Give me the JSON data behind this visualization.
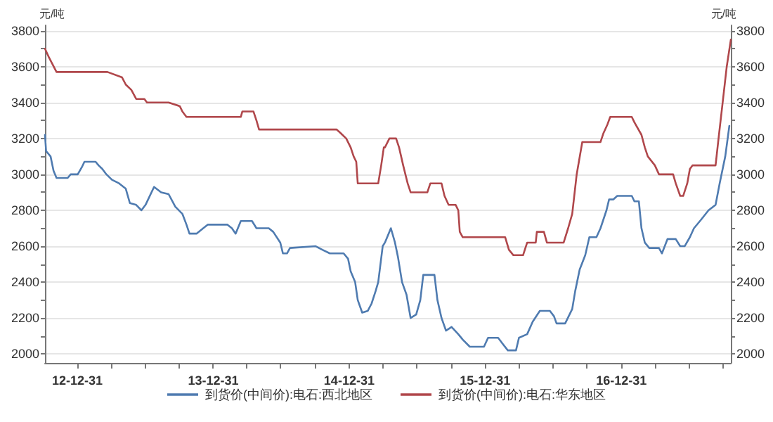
{
  "chart_data": {
    "type": "line",
    "ylabel": "元/吨",
    "y2label": "元/吨",
    "xlim": [
      "2012-10-05",
      "2017-10-21"
    ],
    "xticks": [
      {
        "value": "2012-12-31",
        "label": "12-12-31"
      },
      {
        "value": "2013-03-31",
        "label": null
      },
      {
        "value": "2013-06-30",
        "label": null
      },
      {
        "value": "2013-09-30",
        "label": null
      },
      {
        "value": "2013-12-31",
        "label": "13-12-31"
      },
      {
        "value": "2014-03-31",
        "label": null
      },
      {
        "value": "2014-06-30",
        "label": null
      },
      {
        "value": "2014-09-30",
        "label": null
      },
      {
        "value": "2014-12-31",
        "label": "14-12-31"
      },
      {
        "value": "2015-03-31",
        "label": null
      },
      {
        "value": "2015-06-30",
        "label": null
      },
      {
        "value": "2015-09-30",
        "label": null
      },
      {
        "value": "2015-12-31",
        "label": "15-12-31"
      },
      {
        "value": "2016-03-31",
        "label": null
      },
      {
        "value": "2016-06-30",
        "label": null
      },
      {
        "value": "2016-09-30",
        "label": null
      },
      {
        "value": "2016-12-31",
        "label": "16-12-31"
      },
      {
        "value": "2017-03-31",
        "label": null
      },
      {
        "value": "2017-06-30",
        "label": null
      },
      {
        "value": "2017-09-30",
        "label": null
      }
    ],
    "ylim": [
      1950,
      3830
    ],
    "yticks": [
      2000,
      {
        "value": 2100,
        "label": null
      },
      2200,
      {
        "value": 2300,
        "label": null
      },
      2400,
      {
        "value": 2500,
        "label": null
      },
      2600,
      {
        "value": 2700,
        "label": null
      },
      2800,
      {
        "value": 2900,
        "label": null
      },
      3000,
      {
        "value": 3100,
        "label": null
      },
      3200,
      {
        "value": 3300,
        "label": null
      },
      3400,
      {
        "value": 3500,
        "label": null
      },
      3600,
      {
        "value": 3700,
        "label": null
      },
      3800
    ],
    "y2lim": [
      1950,
      3830
    ],
    "y2ticks": [
      2000,
      {
        "value": 2100,
        "label": null
      },
      2200,
      {
        "value": 2300,
        "label": null
      },
      2400,
      {
        "value": 2500,
        "label": null
      },
      2600,
      {
        "value": 2700,
        "label": null
      },
      2800,
      {
        "value": 2900,
        "label": null
      },
      3000,
      {
        "value": 3100,
        "label": null
      },
      3200,
      {
        "value": 3300,
        "label": null
      },
      3400,
      {
        "value": 3500,
        "label": null
      },
      3600,
      {
        "value": 3700,
        "label": null
      },
      3800
    ],
    "grid": "y",
    "legend": "bottom",
    "marker": "none",
    "line_style": "solid",
    "series": [
      {
        "name": "到货价(中间价):电石:西北地区",
        "color": "#4f7bb0",
        "x": [
          "2012-10-05",
          "2012-10-08",
          "2012-10-20",
          "2012-10-28",
          "2012-11-05",
          "2012-12-05",
          "2012-12-13",
          "2013-01-01",
          "2013-01-12",
          "2013-01-19",
          "2013-02-18",
          "2013-02-26",
          "2013-03-08",
          "2013-03-19",
          "2013-04-03",
          "2013-04-22",
          "2013-05-10",
          "2013-05-21",
          "2013-06-07",
          "2013-06-21",
          "2013-07-02",
          "2013-07-25",
          "2013-08-13",
          "2013-09-02",
          "2013-09-20",
          "2013-10-09",
          "2013-10-20",
          "2013-10-28",
          "2013-11-16",
          "2013-12-04",
          "2013-12-16",
          "2014-02-07",
          "2014-02-19",
          "2014-03-01",
          "2014-03-15",
          "2014-04-14",
          "2014-04-26",
          "2014-05-29",
          "2014-06-10",
          "2014-06-29",
          "2014-07-06",
          "2014-07-17",
          "2014-07-25",
          "2014-10-02",
          "2014-10-20",
          "2014-11-09",
          "2014-12-16",
          "2014-12-28",
          "2015-01-04",
          "2015-01-16",
          "2015-01-23",
          "2015-02-04",
          "2015-02-19",
          "2015-03-01",
          "2015-03-12",
          "2015-03-19",
          "2015-03-31",
          "2015-04-06",
          "2015-04-22",
          "2015-05-03",
          "2015-05-11",
          "2015-05-22",
          "2015-06-03",
          "2015-06-14",
          "2015-06-29",
          "2015-07-10",
          "2015-07-18",
          "2015-08-17",
          "2015-08-25",
          "2015-09-05",
          "2015-09-17",
          "2015-10-02",
          "2015-10-20",
          "2015-11-01",
          "2015-11-20",
          "2015-12-28",
          "2016-01-08",
          "2016-02-04",
          "2016-02-15",
          "2016-03-01",
          "2016-03-23",
          "2016-03-31",
          "2016-04-22",
          "2016-05-07",
          "2016-05-26",
          "2016-06-22",
          "2016-07-03",
          "2016-07-10",
          "2016-08-02",
          "2016-08-21",
          "2016-08-29",
          "2016-09-10",
          "2016-09-25",
          "2016-10-06",
          "2016-10-25",
          "2016-11-05",
          "2016-11-21",
          "2016-11-28",
          "2016-12-09",
          "2016-12-20",
          "2017-01-28",
          "2017-02-04",
          "2017-02-16",
          "2017-02-23",
          "2017-03-04",
          "2017-03-16",
          "2017-04-11",
          "2017-04-19",
          "2017-05-04",
          "2017-05-26",
          "2017-06-07",
          "2017-06-19",
          "2017-07-03",
          "2017-07-14",
          "2017-08-03",
          "2017-08-22",
          "2017-09-10",
          "2017-09-21",
          "2017-10-06",
          "2017-10-17"
        ],
        "values": [
          3220,
          3130,
          3100,
          3020,
          2980,
          2980,
          3000,
          3000,
          3040,
          3070,
          3070,
          3050,
          3030,
          3000,
          2970,
          2950,
          2920,
          2840,
          2830,
          2800,
          2830,
          2930,
          2900,
          2890,
          2820,
          2780,
          2720,
          2670,
          2670,
          2700,
          2720,
          2720,
          2700,
          2670,
          2740,
          2740,
          2700,
          2700,
          2680,
          2620,
          2560,
          2560,
          2590,
          2600,
          2580,
          2560,
          2560,
          2530,
          2460,
          2400,
          2300,
          2230,
          2240,
          2280,
          2350,
          2400,
          2600,
          2620,
          2700,
          2620,
          2540,
          2400,
          2330,
          2200,
          2220,
          2300,
          2440,
          2440,
          2300,
          2200,
          2130,
          2150,
          2110,
          2080,
          2040,
          2040,
          2090,
          2090,
          2060,
          2020,
          2020,
          2090,
          2110,
          2180,
          2240,
          2240,
          2210,
          2170,
          2170,
          2250,
          2350,
          2470,
          2550,
          2650,
          2650,
          2700,
          2800,
          2860,
          2860,
          2880,
          2880,
          2850,
          2850,
          2700,
          2620,
          2590,
          2590,
          2560,
          2640,
          2640,
          2600,
          2600,
          2650,
          2700,
          2750,
          2800,
          2830,
          2950,
          3100,
          3270
        ]
      },
      {
        "name": "到货价(中间价):电石:华东地区",
        "color": "#b0474b",
        "x": [
          "2012-10-05",
          "2012-10-16",
          "2012-11-05",
          "2013-03-22",
          "2013-04-30",
          "2013-05-10",
          "2013-05-25",
          "2013-06-07",
          "2013-06-29",
          "2013-07-06",
          "2013-09-02",
          "2013-10-02",
          "2013-10-09",
          "2013-10-20",
          "2014-03-15",
          "2014-03-19",
          "2014-04-18",
          "2014-04-26",
          "2014-05-03",
          "2014-11-27",
          "2014-12-08",
          "2014-12-23",
          "2015-01-04",
          "2015-01-12",
          "2015-01-19",
          "2015-01-23",
          "2015-03-19",
          "2015-03-27",
          "2015-04-03",
          "2015-04-06",
          "2015-04-18",
          "2015-05-06",
          "2015-05-14",
          "2015-05-25",
          "2015-06-06",
          "2015-06-14",
          "2015-07-29",
          "2015-08-06",
          "2015-09-05",
          "2015-09-13",
          "2015-09-24",
          "2015-10-13",
          "2015-10-20",
          "2015-10-24",
          "2015-11-01",
          "2016-02-23",
          "2016-03-04",
          "2016-03-16",
          "2016-04-11",
          "2016-04-22",
          "2016-05-15",
          "2016-05-18",
          "2016-06-06",
          "2016-06-14",
          "2016-07-29",
          "2016-08-10",
          "2016-08-21",
          "2016-09-02",
          "2016-09-17",
          "2016-11-05",
          "2016-11-13",
          "2016-11-24",
          "2016-12-01",
          "2017-01-28",
          "2017-02-04",
          "2017-02-23",
          "2017-03-04",
          "2017-03-12",
          "2017-03-31",
          "2017-04-11",
          "2017-05-19",
          "2017-05-26",
          "2017-06-07",
          "2017-06-15",
          "2017-06-26",
          "2017-07-03",
          "2017-07-10",
          "2017-09-10",
          "2017-09-18",
          "2017-09-29",
          "2017-10-10",
          "2017-10-21"
        ],
        "values": [
          3700,
          3650,
          3570,
          3570,
          3540,
          3500,
          3470,
          3420,
          3420,
          3400,
          3400,
          3380,
          3350,
          3320,
          3320,
          3350,
          3350,
          3300,
          3250,
          3250,
          3230,
          3200,
          3150,
          3100,
          3070,
          2950,
          2950,
          3050,
          3150,
          3150,
          3200,
          3200,
          3150,
          3050,
          2950,
          2900,
          2900,
          2950,
          2950,
          2880,
          2830,
          2830,
          2800,
          2680,
          2650,
          2650,
          2580,
          2550,
          2550,
          2620,
          2620,
          2680,
          2680,
          2620,
          2620,
          2700,
          2780,
          3000,
          3180,
          3180,
          3230,
          3280,
          3320,
          3320,
          3290,
          3220,
          3150,
          3100,
          3050,
          3000,
          3000,
          2950,
          2880,
          2880,
          2950,
          3030,
          3050,
          3050,
          3200,
          3400,
          3600,
          3750
        ]
      }
    ]
  }
}
